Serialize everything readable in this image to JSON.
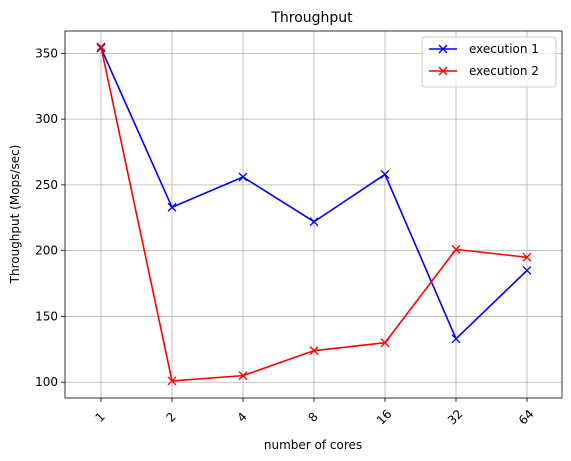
{
  "chart_data": {
    "type": "line",
    "title": "Throughput",
    "xlabel": "number of cores",
    "ylabel": "Throughput (Mops/sec)",
    "categories": [
      "1",
      "2",
      "4",
      "8",
      "16",
      "32",
      "64"
    ],
    "ylim": [
      88,
      367
    ],
    "yticks": [
      100,
      150,
      200,
      250,
      300,
      350
    ],
    "grid": true,
    "legend_position": "top-right",
    "series": [
      {
        "name": "execution 1",
        "color": "#0000ff",
        "marker": "x",
        "values": [
          354,
          233,
          256,
          222,
          258,
          133,
          185
        ]
      },
      {
        "name": "execution 2",
        "color": "#ff0000",
        "marker": "x",
        "values": [
          355,
          101,
          105,
          124,
          130,
          201,
          195
        ]
      }
    ]
  }
}
